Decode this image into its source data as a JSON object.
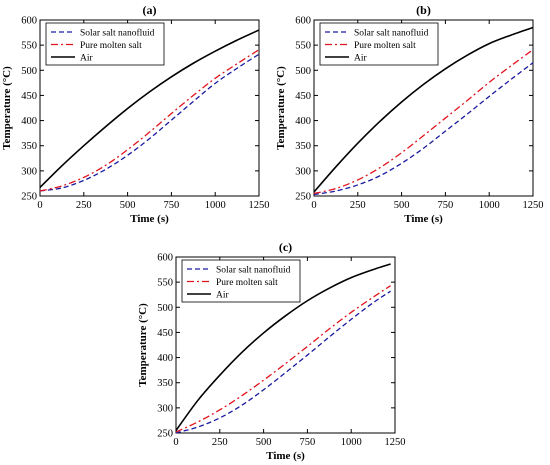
{
  "chart_data": [
    {
      "type": "line",
      "panel_label": "(a)",
      "xlabel": "Time (s)",
      "ylabel": "Temperature (°C)",
      "xlim": [
        0,
        1250
      ],
      "ylim": [
        250,
        600
      ],
      "xticks": [
        0,
        250,
        500,
        750,
        1000,
        1250
      ],
      "yticks": [
        250,
        300,
        350,
        400,
        450,
        500,
        550,
        600
      ],
      "legend_position": "top-left",
      "grid": false,
      "x": [
        0,
        125,
        250,
        375,
        500,
        625,
        750,
        875,
        1000,
        1125,
        1250
      ],
      "series": [
        {
          "name": "Solar salt nanofluid",
          "color": "#1a1aa0",
          "style": "dashed",
          "values": [
            260,
            266,
            281,
            303,
            331,
            364,
            401,
            438,
            474,
            504,
            532
          ]
        },
        {
          "name": "Pure molten salt",
          "color": "#e0141e",
          "style": "dashdot",
          "values": [
            260,
            270,
            287,
            311,
            342,
            377,
            414,
            450,
            484,
            513,
            541
          ]
        },
        {
          "name": "Air",
          "color": "#000000",
          "style": "solid",
          "values": [
            267,
            310,
            350,
            388,
            424,
            457,
            487,
            514,
            538,
            560,
            580
          ]
        }
      ]
    },
    {
      "type": "line",
      "panel_label": "(b)",
      "xlabel": "Time (s)",
      "ylabel": "Temperature (°C)",
      "xlim": [
        0,
        1250
      ],
      "ylim": [
        250,
        600
      ],
      "xticks": [
        0,
        250,
        500,
        750,
        1000,
        1250
      ],
      "yticks": [
        250,
        300,
        350,
        400,
        450,
        500,
        550,
        600
      ],
      "legend_position": "top-left",
      "grid": false,
      "x": [
        0,
        125,
        250,
        375,
        500,
        625,
        750,
        875,
        1000,
        1125,
        1250
      ],
      "series": [
        {
          "name": "Solar salt nanofluid",
          "color": "#1a1aa0",
          "style": "dashed",
          "values": [
            253,
            260,
            272,
            290,
            315,
            345,
            379,
            413,
            448,
            482,
            515
          ]
        },
        {
          "name": "Pure molten salt",
          "color": "#e0141e",
          "style": "dashdot",
          "values": [
            255,
            265,
            282,
            306,
            336,
            370,
            405,
            440,
            476,
            509,
            541
          ]
        },
        {
          "name": "Air",
          "color": "#000000",
          "style": "solid",
          "values": [
            258,
            308,
            355,
            398,
            437,
            472,
            503,
            530,
            553,
            570,
            585
          ]
        }
      ]
    },
    {
      "type": "line",
      "panel_label": "(c)",
      "xlabel": "Time (s)",
      "ylabel": "Temperature (°C)",
      "xlim": [
        0,
        1250
      ],
      "ylim": [
        250,
        600
      ],
      "xticks": [
        0,
        250,
        500,
        750,
        1000,
        1250
      ],
      "yticks": [
        250,
        300,
        350,
        400,
        450,
        500,
        550,
        600
      ],
      "legend_position": "top-left",
      "grid": false,
      "x": [
        0,
        125,
        250,
        375,
        500,
        625,
        750,
        875,
        1000,
        1125,
        1225
      ],
      "series": [
        {
          "name": "Solar salt nanofluid",
          "color": "#1a1aa0",
          "style": "dashed",
          "values": [
            250,
            262,
            280,
            305,
            336,
            370,
            405,
            441,
            476,
            509,
            532
          ]
        },
        {
          "name": "Pure molten salt",
          "color": "#e0141e",
          "style": "dashdot",
          "values": [
            252,
            272,
            296,
            324,
            355,
            388,
            422,
            457,
            490,
            520,
            543
          ]
        },
        {
          "name": "Air",
          "color": "#000000",
          "style": "solid",
          "values": [
            255,
            315,
            365,
            410,
            449,
            483,
            513,
            538,
            559,
            575,
            586
          ]
        }
      ]
    }
  ]
}
